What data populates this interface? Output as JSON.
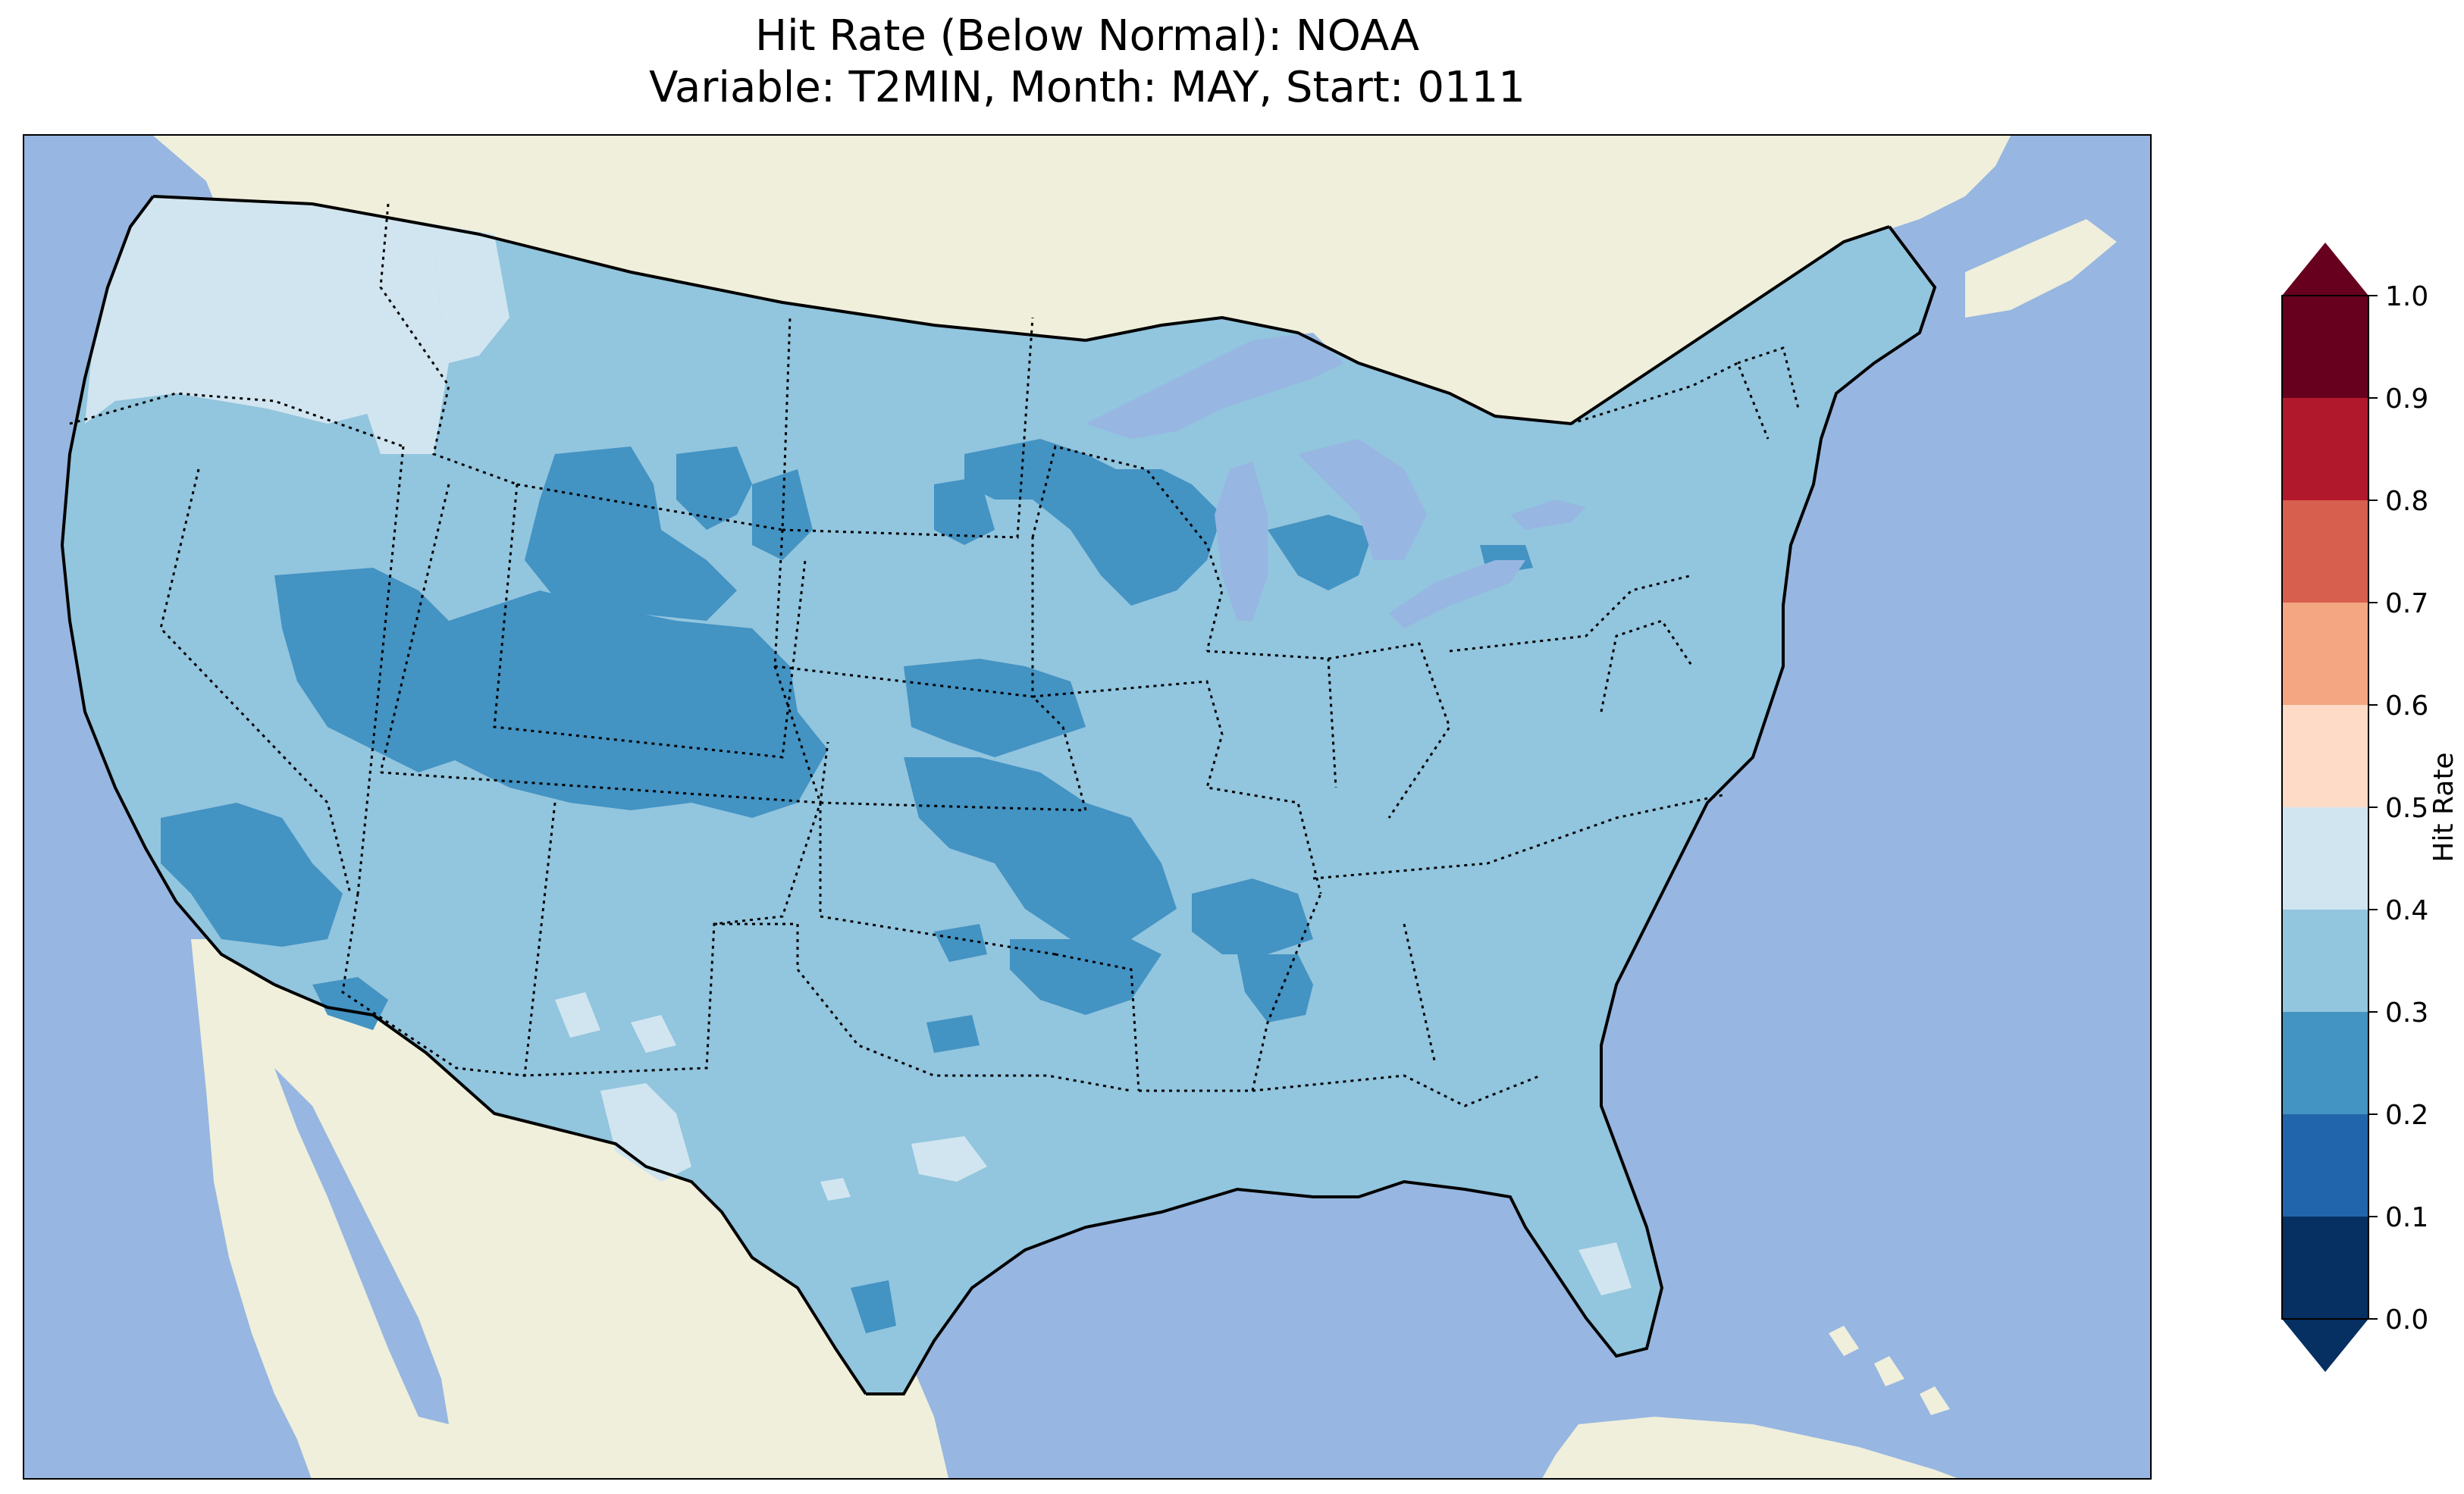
{
  "title": {
    "line1": "Hit Rate (Below Normal): NOAA",
    "line2": "Variable: T2MIN, Month: MAY, Start: 0111"
  },
  "colors": {
    "ocean": "#97b6e1",
    "land": "#efefdb",
    "lakes": "#97b6e1"
  },
  "colorbar": {
    "label": "Hit Rate",
    "ticks": [
      "0.0",
      "0.1",
      "0.2",
      "0.3",
      "0.4",
      "0.5",
      "0.6",
      "0.7",
      "0.8",
      "0.9",
      "1.0"
    ],
    "bins": [
      {
        "min": 0.0,
        "max": 0.1,
        "color": "#053061"
      },
      {
        "min": 0.1,
        "max": 0.2,
        "color": "#2166ac"
      },
      {
        "min": 0.2,
        "max": 0.3,
        "color": "#4393c3"
      },
      {
        "min": 0.3,
        "max": 0.4,
        "color": "#92c5de"
      },
      {
        "min": 0.4,
        "max": 0.5,
        "color": "#d1e5f0"
      },
      {
        "min": 0.5,
        "max": 0.6,
        "color": "#fddbc7"
      },
      {
        "min": 0.6,
        "max": 0.7,
        "color": "#f4a582"
      },
      {
        "min": 0.7,
        "max": 0.8,
        "color": "#d6604d"
      },
      {
        "min": 0.8,
        "max": 0.9,
        "color": "#b2182b"
      },
      {
        "min": 0.9,
        "max": 1.0,
        "color": "#67001f"
      }
    ],
    "extend": "both",
    "under_color": "#053061",
    "over_color": "#67001f"
  },
  "map": {
    "background_hit_rate_range": [
      0.3,
      0.4
    ],
    "regions": [
      {
        "name": "pacific-northwest",
        "range": [
          0.4,
          0.5
        ]
      },
      {
        "name": "idaho-panhandle",
        "range": [
          0.4,
          0.5
        ]
      },
      {
        "name": "great-basin-rockies",
        "range": [
          0.2,
          0.3
        ]
      },
      {
        "name": "colorado-utah",
        "range": [
          0.2,
          0.3
        ]
      },
      {
        "name": "wyoming",
        "range": [
          0.2,
          0.3
        ]
      },
      {
        "name": "montana-east",
        "range": [
          0.2,
          0.3
        ]
      },
      {
        "name": "southern-california-nevada",
        "range": [
          0.2,
          0.3
        ]
      },
      {
        "name": "arizona-south",
        "range": [
          0.2,
          0.3
        ]
      },
      {
        "name": "upper-midwest",
        "range": [
          0.2,
          0.3
        ]
      },
      {
        "name": "michigan-upper",
        "range": [
          0.2,
          0.3
        ]
      },
      {
        "name": "north-dakota-minnesota",
        "range": [
          0.2,
          0.3
        ]
      },
      {
        "name": "nebraska-iowa",
        "range": [
          0.2,
          0.3
        ]
      },
      {
        "name": "missouri-kansas",
        "range": [
          0.2,
          0.3
        ]
      },
      {
        "name": "arkansas-tennessee",
        "range": [
          0.2,
          0.3
        ]
      },
      {
        "name": "alabama-mississippi",
        "range": [
          0.2,
          0.3
        ]
      },
      {
        "name": "oklahoma-central",
        "range": [
          0.2,
          0.3
        ]
      },
      {
        "name": "south-texas-coast",
        "range": [
          0.2,
          0.3
        ]
      },
      {
        "name": "new-york-upstate",
        "range": [
          0.2,
          0.3
        ]
      },
      {
        "name": "west-texas",
        "range": [
          0.4,
          0.5
        ]
      },
      {
        "name": "new-mexico-south",
        "range": [
          0.4,
          0.5
        ]
      },
      {
        "name": "central-texas",
        "range": [
          0.4,
          0.5
        ]
      },
      {
        "name": "south-florida",
        "range": [
          0.4,
          0.5
        ]
      }
    ]
  }
}
